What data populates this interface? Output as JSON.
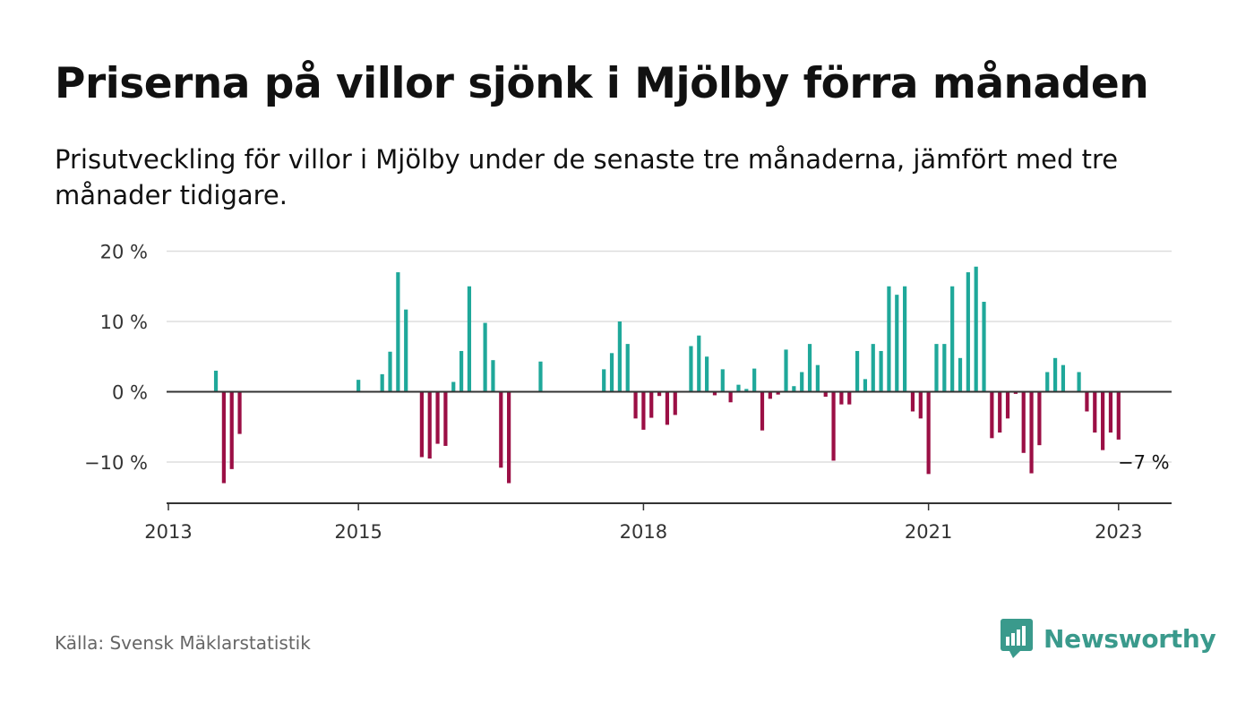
{
  "header": {
    "title": "Priserna på villor sjönk i Mjölby förra månaden",
    "subtitle": "Prisutveckling för villor i Mjölby under de senaste tre månaderna, jämfört med tre månader tidigare."
  },
  "footer": {
    "source": "Källa: Svensk Mäklarstatistik",
    "brand": "Newsworthy",
    "brand_icon": "bar-chart-logo-icon"
  },
  "colors": {
    "positive": "#1fa89a",
    "negative": "#9b0f45",
    "zero_line": "#333333",
    "grid": "#dddddd",
    "brand": "#3a9a8c"
  },
  "chart_data": {
    "type": "bar",
    "x_unit": "month",
    "xlim": [
      "2013-01",
      "2023-06"
    ],
    "ylim": [
      -15,
      20
    ],
    "y_ticks": [
      -10,
      0,
      10,
      20
    ],
    "y_tick_labels": [
      "−10 %",
      "0 %",
      "10 %",
      "20 %"
    ],
    "x_ticks": [
      "2013-01",
      "2015-01",
      "2018-01",
      "2021-01",
      "2023-01"
    ],
    "x_tick_labels": [
      "2013",
      "2015",
      "2018",
      "2021",
      "2023"
    ],
    "grid": true,
    "annotation": {
      "x": "2023-01",
      "y": -7,
      "text": "−7 %"
    },
    "points": [
      {
        "x": "2013-07",
        "y": 3
      },
      {
        "x": "2013-08",
        "y": -13
      },
      {
        "x": "2013-09",
        "y": -11
      },
      {
        "x": "2013-10",
        "y": -6
      },
      {
        "x": "2015-01",
        "y": 1.7
      },
      {
        "x": "2015-04",
        "y": 2.5
      },
      {
        "x": "2015-05",
        "y": 5.7
      },
      {
        "x": "2015-06",
        "y": 17
      },
      {
        "x": "2015-07",
        "y": 11.7
      },
      {
        "x": "2015-09",
        "y": -9.3
      },
      {
        "x": "2015-10",
        "y": -9.5
      },
      {
        "x": "2015-11",
        "y": -7.4
      },
      {
        "x": "2015-12",
        "y": -7.7
      },
      {
        "x": "2016-01",
        "y": 1.4
      },
      {
        "x": "2016-02",
        "y": 5.8
      },
      {
        "x": "2016-03",
        "y": 15
      },
      {
        "x": "2016-05",
        "y": 9.8
      },
      {
        "x": "2016-06",
        "y": 4.5
      },
      {
        "x": "2016-07",
        "y": -10.8
      },
      {
        "x": "2016-08",
        "y": -13
      },
      {
        "x": "2016-12",
        "y": 4.3
      },
      {
        "x": "2017-08",
        "y": 3.2
      },
      {
        "x": "2017-09",
        "y": 5.5
      },
      {
        "x": "2017-10",
        "y": 10
      },
      {
        "x": "2017-11",
        "y": 6.8
      },
      {
        "x": "2017-12",
        "y": -3.8
      },
      {
        "x": "2018-01",
        "y": -5.4
      },
      {
        "x": "2018-02",
        "y": -3.7
      },
      {
        "x": "2018-03",
        "y": -0.6
      },
      {
        "x": "2018-04",
        "y": -4.7
      },
      {
        "x": "2018-05",
        "y": -3.3
      },
      {
        "x": "2018-07",
        "y": 6.5
      },
      {
        "x": "2018-08",
        "y": 8
      },
      {
        "x": "2018-09",
        "y": 5
      },
      {
        "x": "2018-10",
        "y": -0.5
      },
      {
        "x": "2018-11",
        "y": 3.2
      },
      {
        "x": "2018-12",
        "y": -1.5
      },
      {
        "x": "2019-01",
        "y": 1
      },
      {
        "x": "2019-02",
        "y": 0.4
      },
      {
        "x": "2019-03",
        "y": 3.3
      },
      {
        "x": "2019-04",
        "y": -5.5
      },
      {
        "x": "2019-05",
        "y": -1
      },
      {
        "x": "2019-06",
        "y": -0.4
      },
      {
        "x": "2019-07",
        "y": 6
      },
      {
        "x": "2019-08",
        "y": 0.8
      },
      {
        "x": "2019-09",
        "y": 2.8
      },
      {
        "x": "2019-10",
        "y": 6.8
      },
      {
        "x": "2019-11",
        "y": 3.8
      },
      {
        "x": "2019-12",
        "y": -0.7
      },
      {
        "x": "2020-01",
        "y": -9.8
      },
      {
        "x": "2020-02",
        "y": -1.8
      },
      {
        "x": "2020-03",
        "y": -1.8
      },
      {
        "x": "2020-04",
        "y": 5.8
      },
      {
        "x": "2020-05",
        "y": 1.8
      },
      {
        "x": "2020-06",
        "y": 6.8
      },
      {
        "x": "2020-07",
        "y": 5.8
      },
      {
        "x": "2020-08",
        "y": 15
      },
      {
        "x": "2020-09",
        "y": 13.8
      },
      {
        "x": "2020-10",
        "y": 15
      },
      {
        "x": "2020-11",
        "y": -2.8
      },
      {
        "x": "2020-12",
        "y": -3.8
      },
      {
        "x": "2021-01",
        "y": -11.7
      },
      {
        "x": "2021-02",
        "y": 6.8
      },
      {
        "x": "2021-03",
        "y": 6.8
      },
      {
        "x": "2021-04",
        "y": 15
      },
      {
        "x": "2021-05",
        "y": 4.8
      },
      {
        "x": "2021-06",
        "y": 17
      },
      {
        "x": "2021-07",
        "y": 17.8
      },
      {
        "x": "2021-08",
        "y": 12.8
      },
      {
        "x": "2021-09",
        "y": -6.6
      },
      {
        "x": "2021-10",
        "y": -5.8
      },
      {
        "x": "2021-11",
        "y": -3.8
      },
      {
        "x": "2021-12",
        "y": -0.3
      },
      {
        "x": "2022-01",
        "y": -8.7
      },
      {
        "x": "2022-02",
        "y": -11.6
      },
      {
        "x": "2022-03",
        "y": -7.6
      },
      {
        "x": "2022-04",
        "y": 2.8
      },
      {
        "x": "2022-05",
        "y": 4.8
      },
      {
        "x": "2022-06",
        "y": 3.8
      },
      {
        "x": "2022-08",
        "y": 2.8
      },
      {
        "x": "2022-09",
        "y": -2.8
      },
      {
        "x": "2022-10",
        "y": -5.8
      },
      {
        "x": "2022-11",
        "y": -8.3
      },
      {
        "x": "2022-12",
        "y": -5.8
      },
      {
        "x": "2023-01",
        "y": -6.8
      }
    ]
  }
}
